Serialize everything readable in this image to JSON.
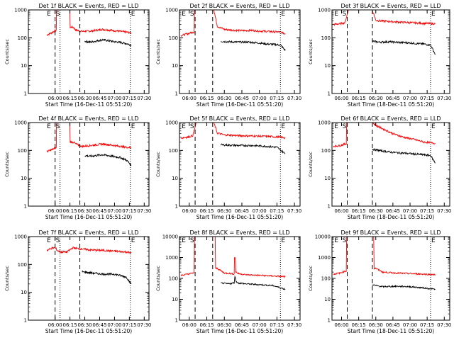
{
  "figure": {
    "xlabel": "Start Time (16-Dec-11 05:51:20)",
    "ylabel": "Counts/sec",
    "marker_labels": {
      "E": "E",
      "S": "S"
    }
  },
  "chart_data": [
    {
      "type": "line",
      "title": "Det 1f BLACK = Events, RED = LLD",
      "xlabel": "Start Time (16-Dec-11 05:51:20)",
      "ylabel": "Counts/sec",
      "xlim": [
        5.55,
        7.58
      ],
      "yscale": "log",
      "ylim": [
        1,
        1000
      ],
      "x_ticks": [
        "06:00",
        "06:15",
        "06:30",
        "06:45",
        "07:00",
        "07:15",
        "07:30"
      ],
      "y_ticks": [
        "1",
        "10",
        "100",
        "1000"
      ],
      "markers": [
        {
          "label": "E",
          "time": "05:51"
        },
        {
          "label": "S",
          "time": "06:00"
        },
        {
          "label": "E",
          "time": "07:16"
        }
      ],
      "dashed_lines": [
        "06:00",
        "06:25"
      ],
      "dotted_lines": [
        "06:05",
        "07:16"
      ],
      "series": [
        {
          "name": "LLD",
          "color": "#ff0000",
          "x": [
            5.86,
            5.94,
            6.0,
            6.05,
            6.1,
            6.2,
            6.3,
            6.35,
            6.45,
            6.6,
            6.8,
            7.0,
            7.1,
            7.2,
            7.28
          ],
          "y": [
            125,
            150,
            180,
            1000,
            1000,
            1000,
            240,
            190,
            170,
            175,
            200,
            180,
            170,
            160,
            150
          ]
        },
        {
          "name": "Events",
          "color": "#000000",
          "x": [
            6.5,
            6.6,
            6.8,
            7.0,
            7.1,
            7.2,
            7.28
          ],
          "y": [
            75,
            70,
            85,
            72,
            68,
            62,
            55
          ]
        }
      ]
    },
    {
      "type": "line",
      "title": "Det 2f BLACK = Events, RED = LLD",
      "xlabel": "Start Time (16-Dec-11 05:51:20)",
      "ylabel": "Counts/sec",
      "xlim": [
        5.86,
        7.58
      ],
      "yscale": "log",
      "ylim": [
        1,
        1000
      ],
      "x_ticks": [
        "06:00",
        "06:15",
        "06:30",
        "06:45",
        "07:00",
        "07:15",
        "07:30"
      ],
      "y_ticks": [
        "1",
        "10",
        "100",
        "1000"
      ],
      "markers": [
        {
          "label": "E",
          "time": "05:53"
        },
        {
          "label": "S",
          "time": "06:00"
        },
        {
          "label": "E",
          "time": "07:18"
        }
      ],
      "dashed_lines": [
        "06:05",
        "06:20"
      ],
      "dotted_lines": [
        "07:18"
      ],
      "series": [
        {
          "name": "LLD",
          "color": "#ff0000",
          "x": [
            5.88,
            5.98,
            6.05,
            6.1,
            6.3,
            6.35,
            6.4,
            6.5,
            6.6,
            6.75,
            6.9,
            7.0,
            7.1,
            7.2,
            7.3,
            7.37
          ],
          "y": [
            120,
            140,
            160,
            1000,
            1000,
            1000,
            260,
            200,
            190,
            180,
            185,
            175,
            170,
            165,
            160,
            140
          ]
        },
        {
          "name": "Events",
          "color": "#000000",
          "x": [
            6.45,
            6.55,
            6.7,
            6.85,
            7.0,
            7.1,
            7.2,
            7.3,
            7.37
          ],
          "y": [
            75,
            72,
            70,
            70,
            65,
            60,
            58,
            55,
            35
          ]
        }
      ]
    },
    {
      "type": "line",
      "title": "Det 3f BLACK = Events, RED = LLD",
      "xlabel": "Start Time (18-Dec-11 05:51:20)",
      "ylabel": "Counts/sec",
      "xlim": [
        5.86,
        7.58
      ],
      "yscale": "log",
      "ylim": [
        1,
        1000
      ],
      "x_ticks": [
        "06:00",
        "06:15",
        "06:30",
        "06:45",
        "07:00",
        "07:15",
        "07:30"
      ],
      "y_ticks": [
        "1",
        "10",
        "100",
        "1000"
      ],
      "markers": [
        {
          "label": "E",
          "time": "05:53"
        },
        {
          "label": "S",
          "time": "06:00"
        },
        {
          "label": "E",
          "time": "07:18"
        }
      ],
      "dashed_lines": [
        "06:05",
        "06:27"
      ],
      "dotted_lines": [
        "07:18"
      ],
      "series": [
        {
          "name": "LLD",
          "color": "#ff0000",
          "x": [
            5.88,
            5.98,
            6.05,
            6.1,
            6.3,
            6.45,
            6.5,
            6.6,
            6.8,
            7.0,
            7.2,
            7.37
          ],
          "y": [
            300,
            320,
            350,
            1000,
            1000,
            1000,
            420,
            400,
            370,
            350,
            330,
            320
          ]
        },
        {
          "name": "Events",
          "color": "#000000",
          "x": [
            6.45,
            6.55,
            6.7,
            6.85,
            7.0,
            7.1,
            7.2,
            7.3,
            7.37
          ],
          "y": [
            75,
            70,
            72,
            68,
            66,
            62,
            60,
            55,
            25
          ]
        }
      ]
    },
    {
      "type": "line",
      "title": "Det 4f BLACK = Events, RED = LLD",
      "xlabel": "Start Time (16-Dec-11 05:51:20)",
      "ylabel": "Counts/sec",
      "xlim": [
        5.55,
        7.58
      ],
      "yscale": "log",
      "ylim": [
        1,
        1000
      ],
      "x_ticks": [
        "06:00",
        "06:15",
        "06:30",
        "06:45",
        "07:00",
        "07:15",
        "07:30"
      ],
      "y_ticks": [
        "1",
        "10",
        "100",
        "1000"
      ],
      "markers": [
        {
          "label": "E",
          "time": "05:51"
        },
        {
          "label": "S",
          "time": "06:00"
        },
        {
          "label": "E",
          "time": "07:16"
        }
      ],
      "dashed_lines": [
        "06:00",
        "06:25"
      ],
      "dotted_lines": [
        "06:05",
        "07:16"
      ],
      "series": [
        {
          "name": "LLD",
          "color": "#ff0000",
          "x": [
            5.86,
            5.94,
            6.0,
            6.05,
            6.1,
            6.2,
            6.3,
            6.35,
            6.45,
            6.6,
            6.8,
            7.0,
            7.1,
            7.2,
            7.28
          ],
          "y": [
            90,
            105,
            120,
            1000,
            1000,
            1000,
            200,
            170,
            140,
            150,
            170,
            150,
            140,
            130,
            125
          ]
        },
        {
          "name": "Events",
          "color": "#000000",
          "x": [
            6.5,
            6.6,
            6.8,
            7.0,
            7.1,
            7.2,
            7.28
          ],
          "y": [
            65,
            62,
            70,
            60,
            55,
            45,
            30
          ]
        }
      ]
    },
    {
      "type": "line",
      "title": "Det 5f BLACK = Events, RED = LLD",
      "xlabel": "Start Time (16-Dec-11 05:51:20)",
      "ylabel": "Counts/sec",
      "xlim": [
        5.86,
        7.58
      ],
      "yscale": "log",
      "ylim": [
        1,
        1000
      ],
      "x_ticks": [
        "06:00",
        "06:15",
        "06:30",
        "06:45",
        "07:00",
        "07:15",
        "07:30"
      ],
      "y_ticks": [
        "1",
        "10",
        "100",
        "1000"
      ],
      "markers": [
        {
          "label": "E",
          "time": "05:53"
        },
        {
          "label": "S",
          "time": "06:00"
        },
        {
          "label": "E",
          "time": "07:18"
        }
      ],
      "dashed_lines": [
        "06:05",
        "06:20"
      ],
      "dotted_lines": [
        "07:18"
      ],
      "series": [
        {
          "name": "LLD",
          "color": "#ff0000",
          "x": [
            5.88,
            5.98,
            6.05,
            6.1,
            6.3,
            6.35,
            6.4,
            6.5,
            6.7,
            6.9,
            7.1,
            7.3,
            7.37
          ],
          "y": [
            280,
            300,
            340,
            1000,
            1000,
            1000,
            420,
            360,
            340,
            330,
            320,
            300,
            280
          ]
        },
        {
          "name": "Events",
          "color": "#000000",
          "x": [
            6.45,
            6.55,
            6.7,
            6.9,
            7.1,
            7.25,
            7.37
          ],
          "y": [
            160,
            155,
            150,
            150,
            140,
            130,
            75
          ]
        }
      ]
    },
    {
      "type": "line",
      "title": "Det 6f BLACK = Events, RED = LLD",
      "xlabel": "Start Time (18-Dec-11 05:51:20)",
      "ylabel": "Counts/sec",
      "xlim": [
        5.86,
        7.58
      ],
      "yscale": "log",
      "ylim": [
        1,
        1000
      ],
      "x_ticks": [
        "06:00",
        "06:15",
        "06:30",
        "06:45",
        "07:00",
        "07:15",
        "07:30"
      ],
      "y_ticks": [
        "1",
        "10",
        "100",
        "1000"
      ],
      "markers": [
        {
          "label": "E",
          "time": "05:53"
        },
        {
          "label": "S",
          "time": "06:00"
        },
        {
          "label": "E",
          "time": "07:18"
        }
      ],
      "dashed_lines": [
        "06:05",
        "06:27"
      ],
      "dotted_lines": [
        "07:18"
      ],
      "series": [
        {
          "name": "LLD",
          "color": "#ff0000",
          "x": [
            5.88,
            5.98,
            6.05,
            6.1,
            6.3,
            6.45,
            6.5,
            6.6,
            6.75,
            6.9,
            7.05,
            7.2,
            7.37
          ],
          "y": [
            140,
            150,
            170,
            1000,
            1000,
            1000,
            800,
            600,
            400,
            300,
            250,
            200,
            180
          ]
        },
        {
          "name": "Events",
          "color": "#000000",
          "x": [
            6.45,
            6.5,
            6.6,
            6.75,
            6.9,
            7.05,
            7.2,
            7.3,
            7.37
          ],
          "y": [
            110,
            105,
            95,
            85,
            80,
            75,
            70,
            65,
            35
          ]
        }
      ]
    },
    {
      "type": "line",
      "title": "Det 7f BLACK = Events, RED = LLD",
      "xlabel": "Start Time (16-Dec-11 05:51:20)",
      "ylabel": "Counts/sec",
      "xlim": [
        5.55,
        7.58
      ],
      "yscale": "log",
      "ylim": [
        1,
        1000
      ],
      "x_ticks": [
        "06:00",
        "06:15",
        "06:30",
        "06:45",
        "07:00",
        "07:15",
        "07:30"
      ],
      "y_ticks": [
        "1",
        "10",
        "100",
        "1000"
      ],
      "markers": [
        {
          "label": "E",
          "time": "05:51"
        },
        {
          "label": "S",
          "time": "06:00"
        },
        {
          "label": "E",
          "time": "07:16"
        }
      ],
      "dashed_lines": [
        "06:00",
        "06:25"
      ],
      "dotted_lines": [
        "06:05",
        "07:16"
      ],
      "series": [
        {
          "name": "LLD",
          "color": "#ff0000",
          "x": [
            5.86,
            5.94,
            6.0,
            6.05,
            6.1,
            6.2,
            6.3,
            6.35,
            6.45,
            6.6,
            6.8,
            7.0,
            7.1,
            7.2,
            7.28
          ],
          "y": [
            320,
            380,
            400,
            300,
            280,
            280,
            400,
            380,
            360,
            330,
            320,
            300,
            290,
            280,
            260
          ]
        },
        {
          "name": "Events",
          "color": "#000000",
          "x": [
            6.45,
            6.6,
            6.8,
            7.0,
            7.1,
            7.2,
            7.28
          ],
          "y": [
            55,
            50,
            45,
            45,
            40,
            35,
            20
          ]
        }
      ]
    },
    {
      "type": "line",
      "title": "Det 8f BLACK = Events, RED = LLD",
      "xlabel": "Start Time (16-Dec-11 05:51:20)",
      "ylabel": "Counts/sec",
      "xlim": [
        5.86,
        7.58
      ],
      "yscale": "log",
      "ylim": [
        1,
        10000
      ],
      "x_ticks": [
        "06:00",
        "06:15",
        "06:30",
        "06:45",
        "07:00",
        "07:15",
        "07:30"
      ],
      "y_ticks": [
        "1",
        "10",
        "100",
        "1000",
        "10000"
      ],
      "markers": [
        {
          "label": "E",
          "time": "05:53"
        },
        {
          "label": "S",
          "time": "06:00"
        },
        {
          "label": "E",
          "time": "07:18"
        }
      ],
      "dashed_lines": [
        "06:05",
        "06:20"
      ],
      "dotted_lines": [
        "07:18"
      ],
      "series": [
        {
          "name": "LLD",
          "color": "#ff0000",
          "x": [
            5.88,
            5.98,
            6.05,
            6.1,
            6.3,
            6.35,
            6.4,
            6.5,
            6.6,
            6.64,
            6.65,
            6.67,
            6.7,
            6.8,
            7.0,
            7.2,
            7.37
          ],
          "y": [
            140,
            160,
            180,
            10000,
            10000,
            10000,
            300,
            180,
            170,
            160,
            1000,
            200,
            170,
            150,
            140,
            130,
            120
          ]
        },
        {
          "name": "Events",
          "color": "#000000",
          "x": [
            6.45,
            6.55,
            6.64,
            6.65,
            6.67,
            6.7,
            6.8,
            7.0,
            7.2,
            7.37
          ],
          "y": [
            60,
            55,
            60,
            130,
            70,
            60,
            55,
            50,
            45,
            30
          ]
        }
      ]
    },
    {
      "type": "line",
      "title": "Det 9f BLACK = Events, RED = LLD",
      "xlabel": "Start Time (18-Dec-11 05:51:20)",
      "ylabel": "Counts/sec",
      "xlim": [
        5.86,
        7.58
      ],
      "yscale": "log",
      "ylim": [
        1,
        10000
      ],
      "x_ticks": [
        "06:00",
        "06:15",
        "06:30",
        "06:45",
        "07:00",
        "07:15",
        "07:30"
      ],
      "y_ticks": [
        "1",
        "10",
        "100",
        "1000",
        "10000"
      ],
      "markers": [
        {
          "label": "E",
          "time": "05:53"
        },
        {
          "label": "S",
          "time": "06:00"
        },
        {
          "label": "E",
          "time": "07:18"
        }
      ],
      "dashed_lines": [
        "06:05",
        "06:27"
      ],
      "dotted_lines": [
        "07:18"
      ],
      "series": [
        {
          "name": "LLD",
          "color": "#ff0000",
          "x": [
            5.88,
            5.98,
            6.05,
            6.1,
            6.3,
            6.45,
            6.5,
            6.6,
            6.8,
            7.0,
            7.2,
            7.37
          ],
          "y": [
            160,
            180,
            220,
            10000,
            10000,
            10000,
            300,
            200,
            180,
            170,
            160,
            150
          ]
        },
        {
          "name": "Events",
          "color": "#000000",
          "x": [
            6.45,
            6.5,
            6.6,
            6.8,
            7.0,
            7.2,
            7.37
          ],
          "y": [
            50,
            45,
            40,
            42,
            40,
            35,
            30
          ]
        }
      ]
    }
  ]
}
